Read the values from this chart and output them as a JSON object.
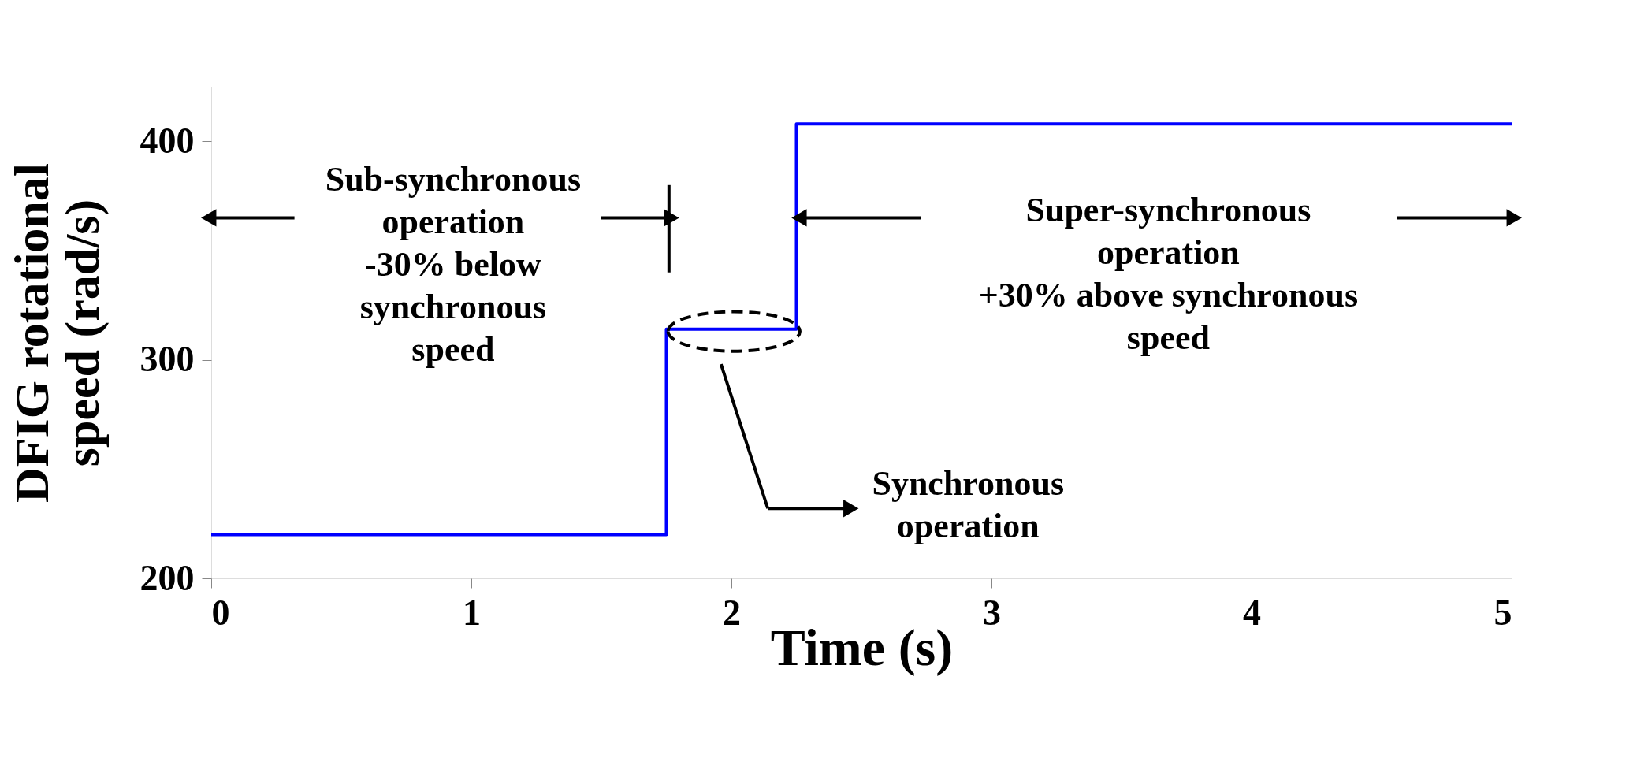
{
  "chart_data": {
    "type": "step",
    "xlabel": "Time (s)",
    "ylabel": "DFIG rotational\nspeed (rad/s)",
    "x": [
      0,
      1.75,
      2.25,
      5
    ],
    "series": [
      {
        "color": "#0000ff",
        "values": [
          220,
          314,
          408,
          408
        ]
      }
    ],
    "xlim": [
      0,
      5
    ],
    "xticks": [
      0,
      1,
      2,
      3,
      4,
      5
    ],
    "ylim": [
      200,
      425
    ],
    "yticks": [
      200,
      300,
      400
    ],
    "annotations": [
      "Sub-synchronous\noperation\n-30% below\nsynchronous\nspeed",
      "Super-synchronous\noperation\n+30% above synchronous\nspeed",
      "Synchronous\noperation"
    ]
  }
}
